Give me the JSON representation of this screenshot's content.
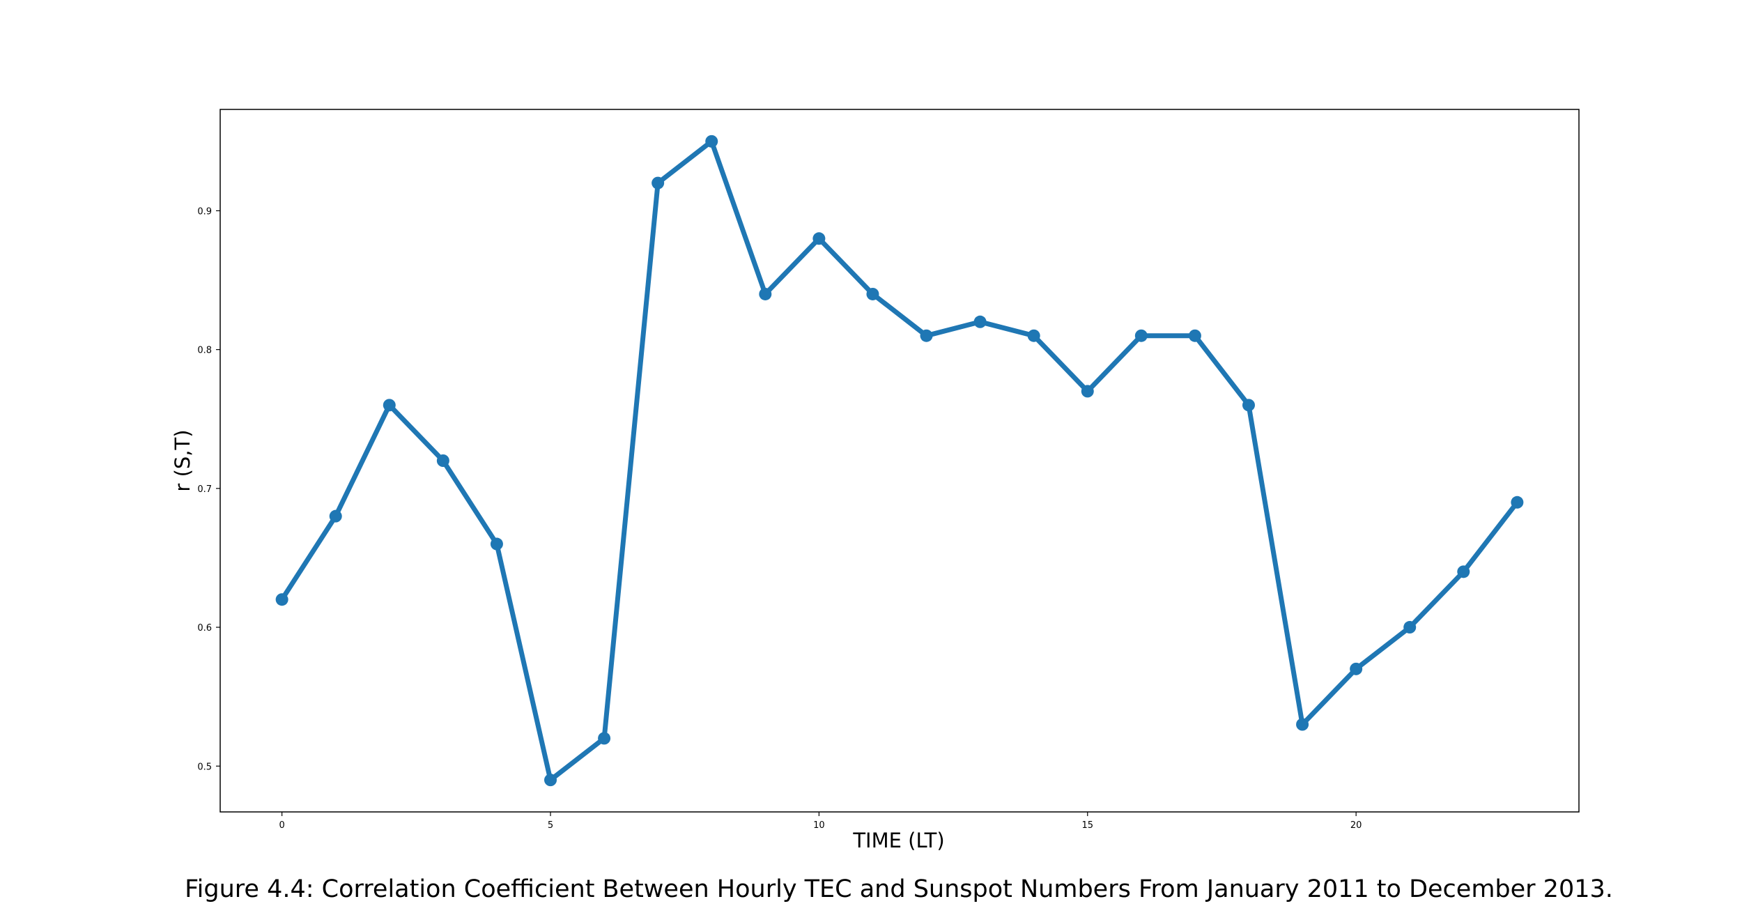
{
  "chart_data": {
    "type": "line",
    "title": "",
    "caption": "Figure 4.4: Correlation Coefficient Between Hourly TEC and Sunspot Numbers From January 2011 to December 2013.",
    "xlabel": "TIME (LT)",
    "ylabel": "r (S,T)",
    "xlim": [
      -1.15,
      24.15
    ],
    "ylim": [
      0.467,
      0.973
    ],
    "xticks": [
      0,
      5,
      10,
      15,
      20
    ],
    "xtick_labels": [
      "0",
      "5",
      "10",
      "15",
      "20"
    ],
    "yticks": [
      0.5,
      0.6,
      0.7,
      0.8,
      0.9
    ],
    "ytick_labels": [
      "0.5",
      "0.6",
      "0.7",
      "0.8",
      "0.9"
    ],
    "grid": false,
    "legend": false,
    "color": "#1f77b4",
    "x": [
      0,
      1,
      2,
      3,
      4,
      5,
      6,
      7,
      8,
      9,
      10,
      11,
      12,
      13,
      14,
      15,
      16,
      17,
      18,
      19,
      20,
      21,
      22,
      23
    ],
    "values": [
      0.62,
      0.68,
      0.76,
      0.72,
      0.66,
      0.49,
      0.52,
      0.92,
      0.95,
      0.84,
      0.88,
      0.84,
      0.81,
      0.82,
      0.81,
      0.77,
      0.81,
      0.81,
      0.76,
      0.53,
      0.57,
      0.6,
      0.64,
      0.69
    ]
  }
}
